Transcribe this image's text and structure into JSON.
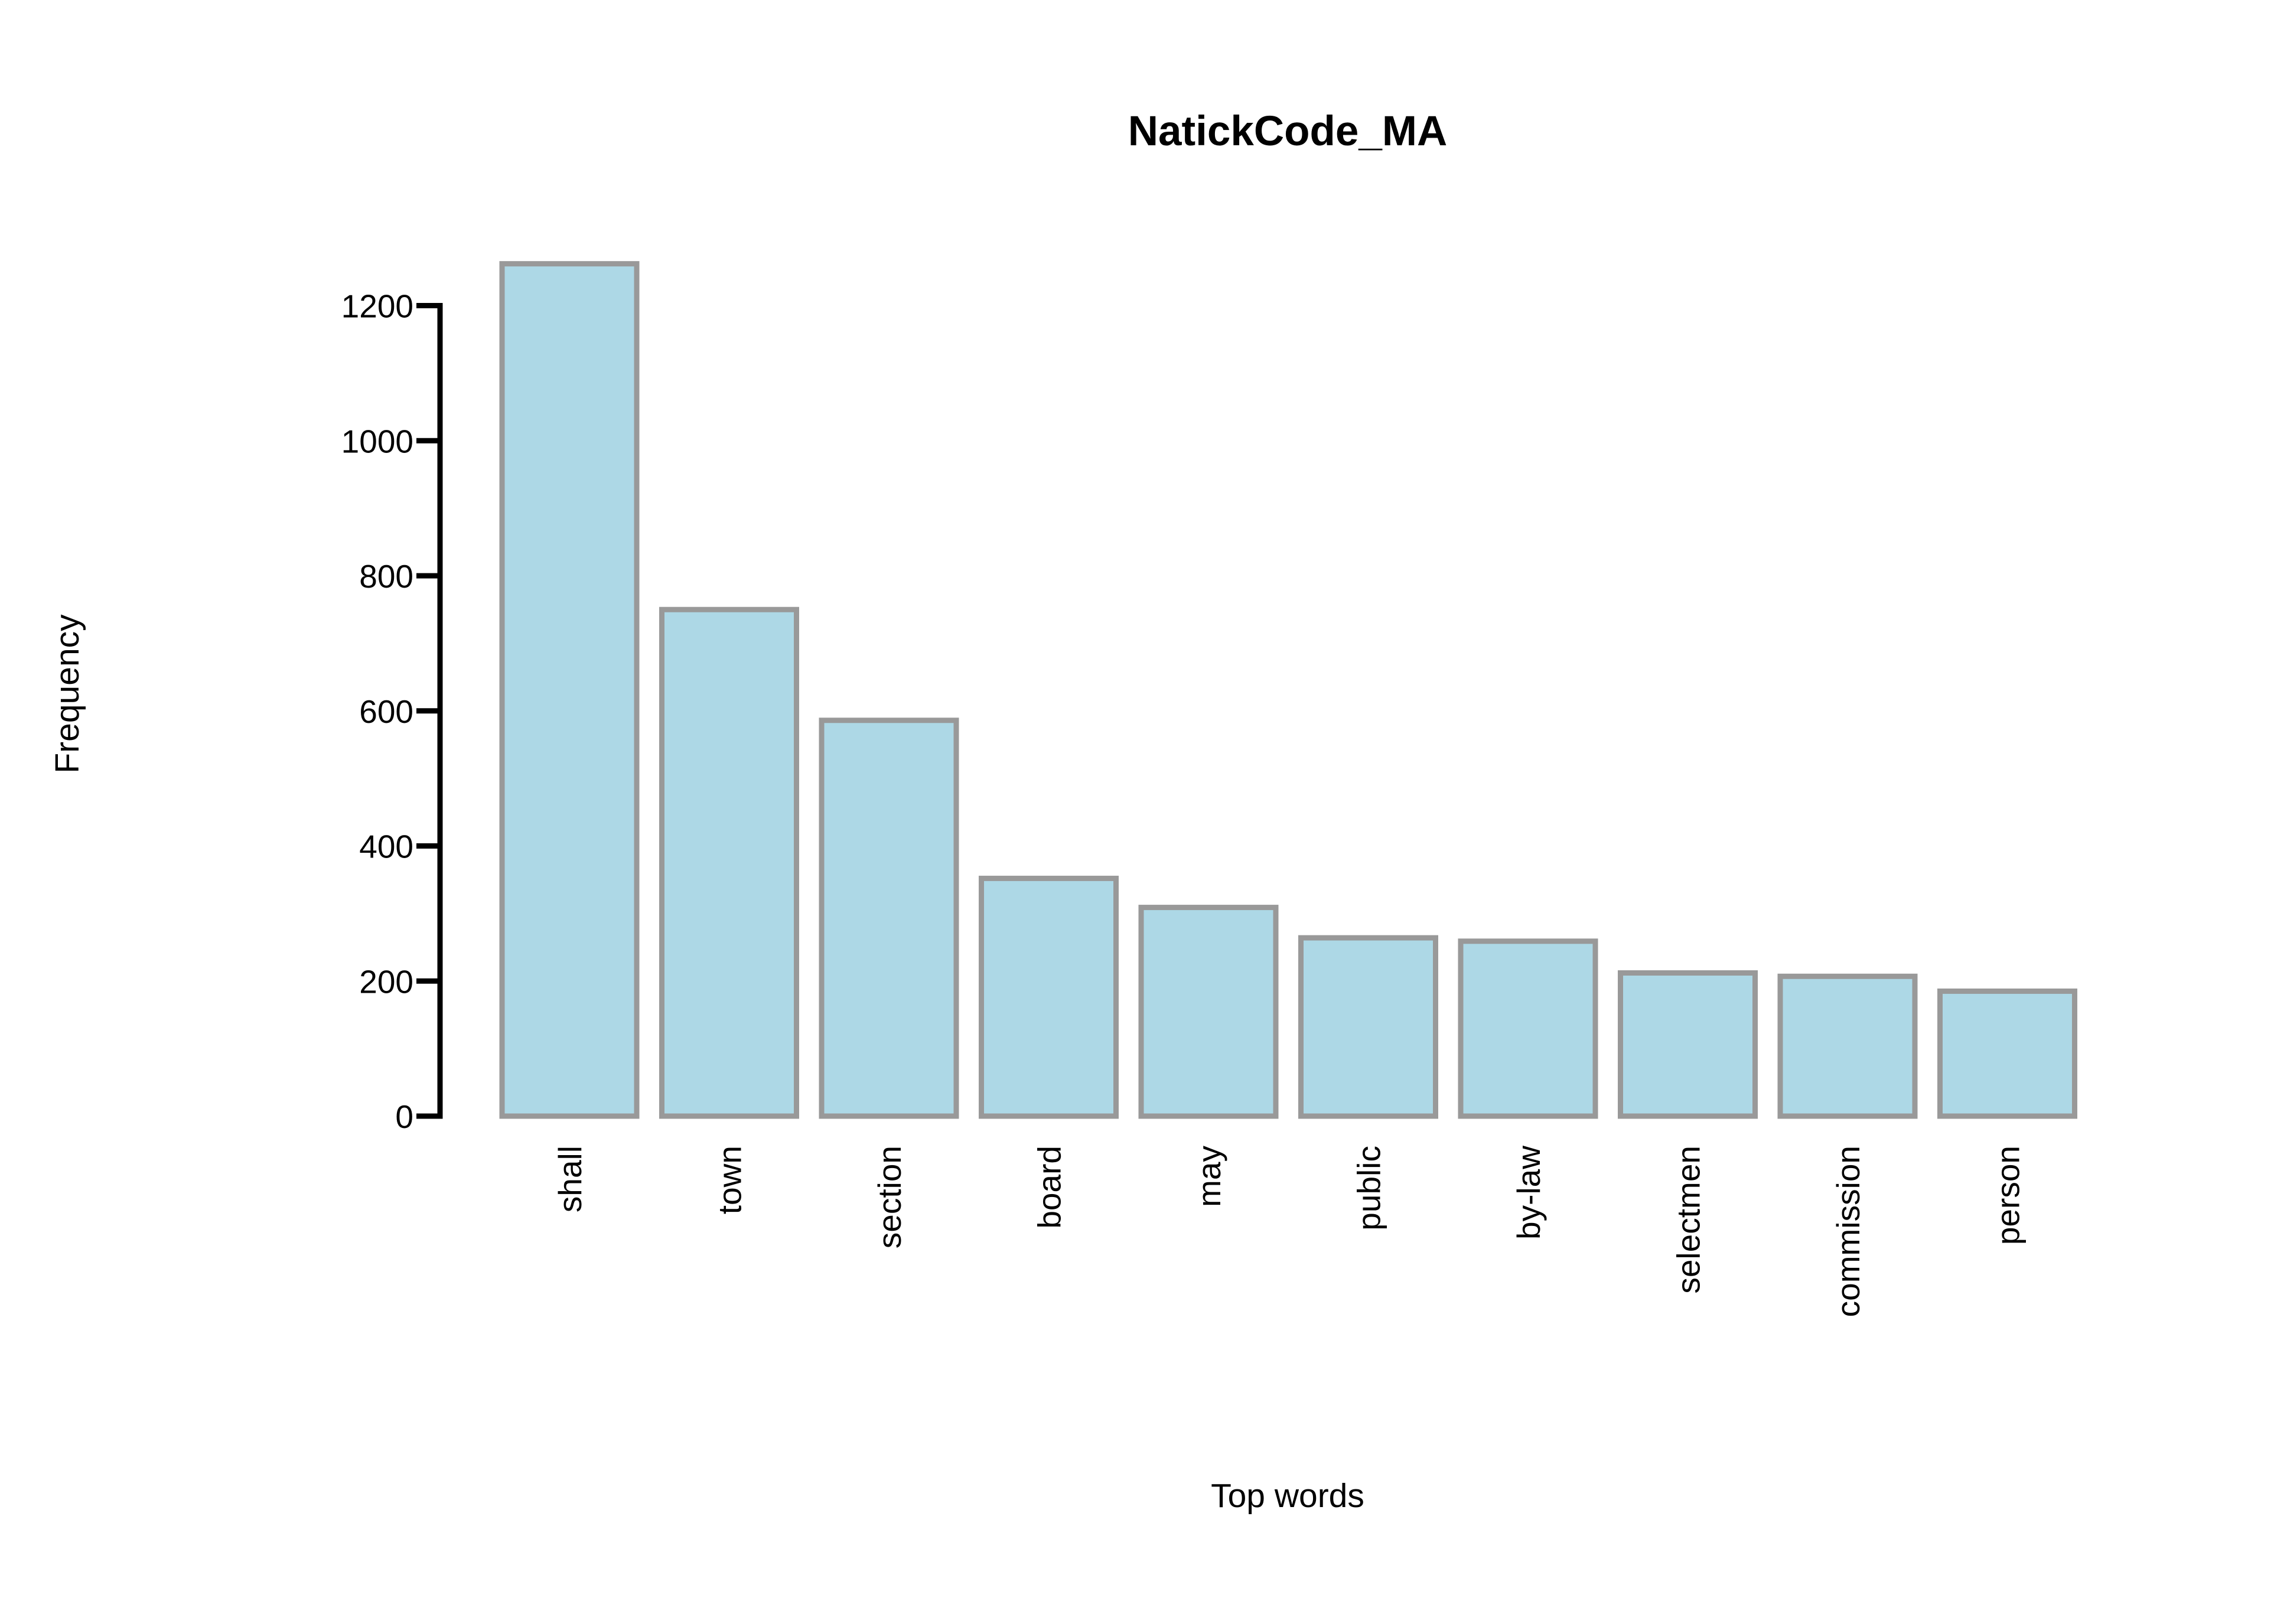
{
  "chart_data": {
    "type": "bar",
    "title": "NatickCode_MA",
    "xlabel": "Top words",
    "ylabel": "Frequency",
    "categories": [
      "shall",
      "town",
      "section",
      "board",
      "may",
      "public",
      "by-law",
      "selectmen",
      "commission",
      "person"
    ],
    "values": [
      1262,
      750,
      586,
      352,
      309,
      264,
      259,
      212,
      207,
      185
    ],
    "yticks": [
      0,
      200,
      400,
      600,
      800,
      1000,
      1200
    ],
    "ylim": [
      0,
      1200
    ],
    "grid": false,
    "legend": "none",
    "colors": {
      "bar_fill": "#add8e6",
      "bar_stroke": "#999999",
      "axis": "#000000"
    }
  }
}
